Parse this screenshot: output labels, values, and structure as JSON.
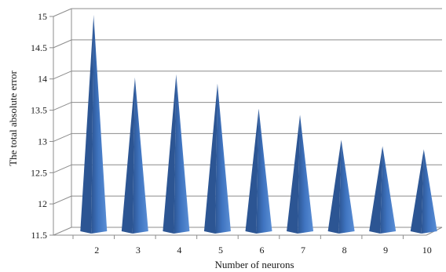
{
  "chart_data": {
    "type": "bar",
    "bar_shape": "3d-cone",
    "categories": [
      "2",
      "3",
      "4",
      "5",
      "6",
      "7",
      "8",
      "9",
      "10"
    ],
    "values": [
      15.0,
      14.0,
      14.05,
      13.9,
      13.5,
      13.4,
      13.0,
      12.9,
      12.85
    ],
    "title": "",
    "xlabel": "Number of neurons",
    "ylabel": "The total absolute error",
    "ylim": [
      11.5,
      15
    ],
    "yticks": [
      "11.5",
      "12",
      "12.5",
      "13",
      "13.5",
      "14",
      "14.5",
      "15"
    ],
    "ytick_values": [
      11.5,
      12,
      12.5,
      13,
      13.5,
      14,
      14.5,
      15
    ],
    "grid": true,
    "legend": "none",
    "colors": {
      "bar_light": "#5b8fd6",
      "bar_mid": "#3f74c0",
      "bar_dark": "#2c5593",
      "grid": "#8c8c8c"
    }
  }
}
